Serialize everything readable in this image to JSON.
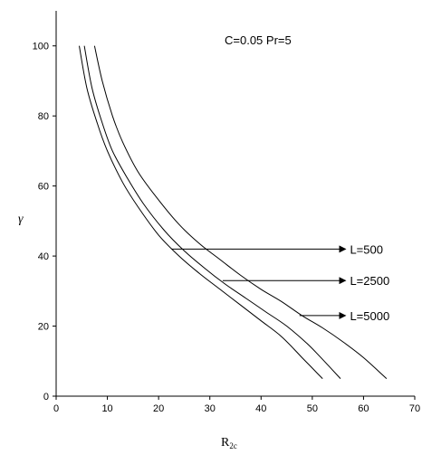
{
  "chart_data": {
    "type": "line",
    "title": "",
    "annotation": "C=0.05 Pr=5",
    "xlabel_main": "R",
    "xlabel_sub": "2c",
    "ylabel": "γ",
    "xlim": [
      0,
      70
    ],
    "ylim": [
      0,
      110
    ],
    "xticks": [
      0,
      10,
      20,
      30,
      40,
      50,
      60,
      70
    ],
    "yticks": [
      0,
      20,
      40,
      60,
      80,
      100
    ],
    "grid": false,
    "series": [
      {
        "name": "L=500",
        "label_at": [
          57,
          42
        ],
        "arrow_from": [
          22.5,
          42
        ],
        "x": [
          4.5,
          6,
          8,
          10,
          13,
          16,
          20,
          24,
          28,
          32,
          36,
          40,
          44,
          48,
          50,
          52
        ],
        "y": [
          100,
          88,
          78,
          70,
          61,
          54,
          46,
          40,
          35,
          30.5,
          26,
          21.5,
          17,
          11,
          8,
          5
        ]
      },
      {
        "name": "L=2500",
        "label_at": [
          57,
          33
        ],
        "arrow_from": [
          32.5,
          33
        ],
        "x": [
          5.5,
          7,
          9,
          11,
          14,
          17,
          21,
          25,
          29,
          33,
          37,
          41,
          45,
          49,
          52,
          55.5
        ],
        "y": [
          100,
          88,
          78,
          70,
          62,
          55,
          47.5,
          41.5,
          36.5,
          32,
          28,
          24,
          20,
          15,
          10.5,
          5
        ]
      },
      {
        "name": "L=5000",
        "label_at": [
          57,
          23
        ],
        "arrow_from": [
          47.5,
          23
        ],
        "x": [
          7.5,
          9,
          11,
          13,
          16,
          20,
          24,
          28,
          32,
          36,
          40,
          44,
          48,
          52,
          56,
          60,
          64.5
        ],
        "y": [
          100,
          90,
          80,
          72.5,
          64,
          56,
          49,
          43.5,
          39,
          34.5,
          30.5,
          27,
          23,
          19.5,
          15.5,
          11,
          5
        ]
      }
    ]
  }
}
